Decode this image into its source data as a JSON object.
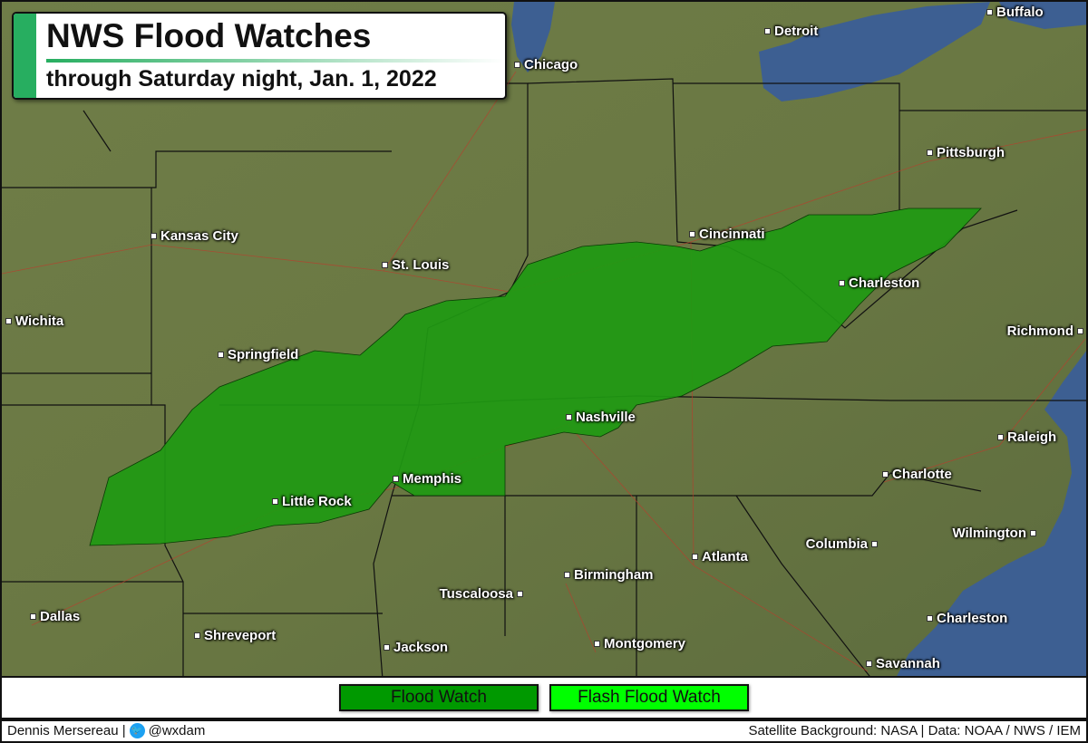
{
  "title": "NWS Flood Watches",
  "subtitle": "through Saturday night, Jan. 1, 2022",
  "colors": {
    "flood_watch": "#009900",
    "flash_flood_watch": "#00ff00",
    "accent": "#27ae60",
    "land": "#6d7a47",
    "water": "#3d5f92"
  },
  "legend": [
    {
      "label": "Flood Watch",
      "color": "#009900"
    },
    {
      "label": "Flash Flood Watch",
      "color": "#00ff00"
    }
  ],
  "footer": {
    "author": "Dennis Mersereau |",
    "twitter_icon": "twitter-bird-icon",
    "handle": "@wxdam",
    "sources": "Satellite Background: NASA | Data: NOAA / NWS / IEM"
  },
  "cities": [
    {
      "name": "Buffalo"
    },
    {
      "name": "Detroit"
    },
    {
      "name": "Chicago"
    },
    {
      "name": "Pittsburgh"
    },
    {
      "name": "Cincinnati"
    },
    {
      "name": "Kansas City"
    },
    {
      "name": "St. Louis"
    },
    {
      "name": "Wichita"
    },
    {
      "name": "Charleston"
    },
    {
      "name": "Richmond"
    },
    {
      "name": "Springfield"
    },
    {
      "name": "Nashville"
    },
    {
      "name": "Raleigh"
    },
    {
      "name": "Memphis"
    },
    {
      "name": "Charlotte"
    },
    {
      "name": "Little Rock"
    },
    {
      "name": "Columbia"
    },
    {
      "name": "Wilmington"
    },
    {
      "name": "Atlanta"
    },
    {
      "name": "Birmingham"
    },
    {
      "name": "Tuscaloosa"
    },
    {
      "name": "Dallas"
    },
    {
      "name": "Charleston"
    },
    {
      "name": "Shreveport"
    },
    {
      "name": "Jackson"
    },
    {
      "name": "Montgomery"
    },
    {
      "name": "Savannah"
    }
  ]
}
